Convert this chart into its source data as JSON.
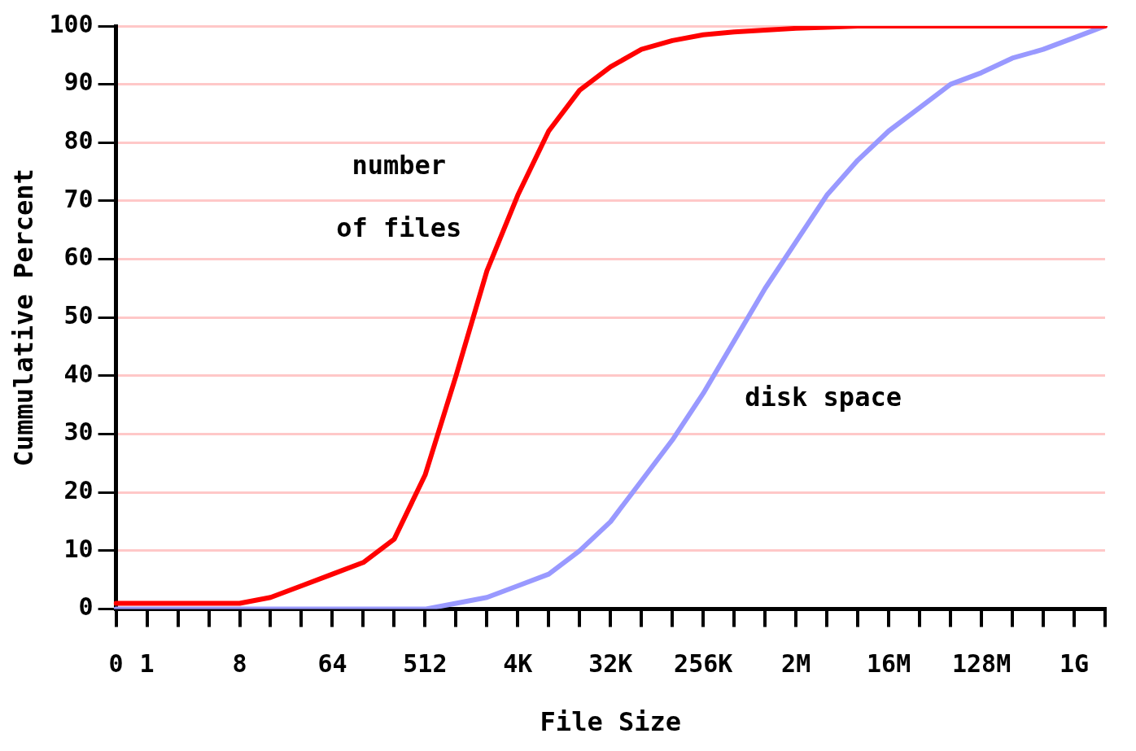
{
  "chart_data": {
    "type": "line",
    "xlabel": "File Size",
    "ylabel": "Cummulative Percent",
    "categories": [
      "0",
      "1",
      null,
      null,
      "8",
      null,
      null,
      "64",
      null,
      null,
      "512",
      null,
      null,
      "4K",
      null,
      null,
      "32K",
      null,
      null,
      "256K",
      null,
      null,
      "2M",
      null,
      null,
      "16M",
      null,
      null,
      "128M",
      null,
      null,
      "1G",
      null
    ],
    "series": [
      {
        "name": "number of files",
        "color": "#ff0000",
        "values": [
          1,
          1,
          1,
          1,
          1,
          2,
          4,
          6,
          8,
          12,
          23,
          40,
          58,
          71,
          82,
          89,
          93,
          96,
          97.5,
          98.5,
          99,
          99.3,
          99.6,
          99.8,
          100,
          100,
          100,
          100,
          100,
          100,
          100,
          100,
          100
        ]
      },
      {
        "name": "disk space",
        "color": "#9999ff",
        "values": [
          0,
          0,
          0,
          0,
          0,
          0,
          0,
          0,
          0,
          0,
          0,
          1,
          2,
          4,
          6,
          10,
          15,
          22,
          29,
          37,
          46,
          55,
          63,
          71,
          77,
          82,
          86,
          90,
          92,
          94.5,
          96,
          98,
          100
        ]
      }
    ],
    "ylim": [
      0,
      100
    ],
    "yticks": [
      0,
      10,
      20,
      30,
      40,
      50,
      60,
      70,
      80,
      90,
      100
    ],
    "grid": "y",
    "legend": false,
    "marker": "none",
    "line_style": "solid"
  }
}
